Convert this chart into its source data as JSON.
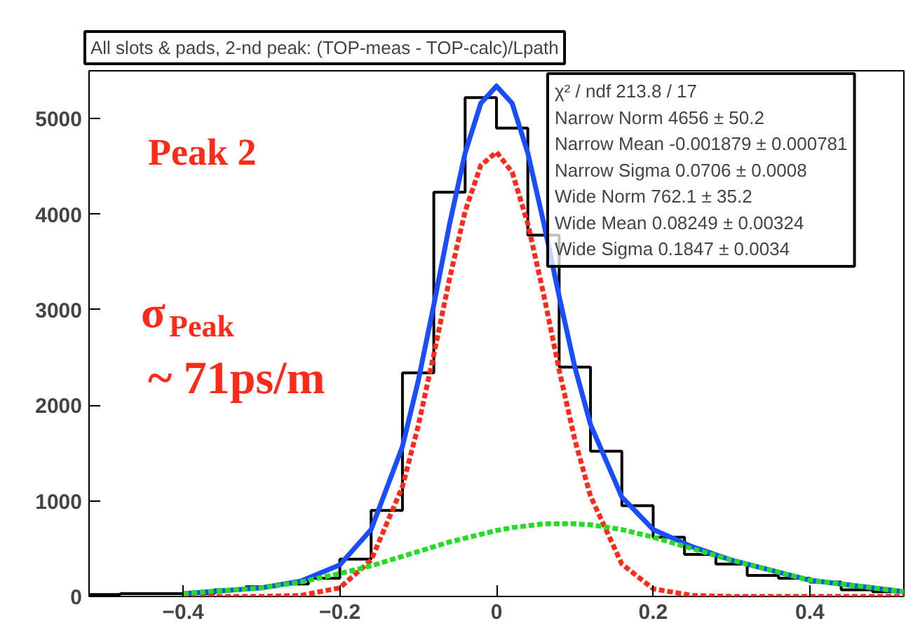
{
  "chart_data": {
    "type": "histogram",
    "title": "All slots & pads, 2-nd peak: (TOP-meas - TOP-calc)/Lpath",
    "bins": [
      -0.52,
      -0.48,
      -0.44,
      -0.4,
      -0.36,
      -0.32,
      -0.28,
      -0.24,
      -0.2,
      -0.16,
      -0.12,
      -0.08,
      -0.04,
      0,
      0.04,
      0.08,
      0.12,
      0.16,
      0.2,
      0.24,
      0.28,
      0.32,
      0.36,
      0.4,
      0.44,
      0.48,
      0.52
    ],
    "values": [
      20,
      30,
      30,
      30,
      70,
      100,
      130,
      190,
      390,
      900,
      2340,
      4230,
      5220,
      4900,
      3780,
      2400,
      1520,
      950,
      620,
      440,
      340,
      220,
      190,
      150,
      70,
      50
    ],
    "color": "#000000",
    "series": [
      {
        "type": "line",
        "color": "#ff2a1a",
        "line_style": "dotted",
        "x": [
          -0.4,
          -0.3,
          -0.25,
          -0.2,
          -0.16,
          -0.12,
          -0.1,
          -0.08,
          -0.06,
          -0.04,
          -0.02,
          0,
          0.02,
          0.04,
          0.06,
          0.08,
          0.1,
          0.12,
          0.16,
          0.2,
          0.25,
          0.3,
          0.4,
          0.52
        ],
        "values": [
          0,
          0,
          10,
          90,
          380,
          1150,
          1780,
          2530,
          3320,
          4030,
          4510,
          4650,
          4440,
          3900,
          3170,
          2370,
          1640,
          1050,
          340,
          80,
          10,
          0,
          0,
          0
        ]
      },
      {
        "type": "line",
        "color": "#22dd22",
        "line_style": "dotted",
        "x": [
          -0.4,
          -0.3,
          -0.25,
          -0.2,
          -0.16,
          -0.12,
          -0.1,
          -0.08,
          -0.06,
          -0.04,
          -0.02,
          0,
          0.02,
          0.04,
          0.06,
          0.08,
          0.1,
          0.12,
          0.16,
          0.2,
          0.25,
          0.3,
          0.4,
          0.52
        ],
        "values": [
          30,
          90,
          150,
          240,
          320,
          420,
          470,
          520,
          570,
          610,
          650,
          690,
          720,
          740,
          760,
          760,
          760,
          750,
          700,
          620,
          500,
          380,
          170,
          50
        ]
      },
      {
        "type": "line",
        "color": "#1a4dff",
        "line_style": "solid",
        "x": [
          -0.4,
          -0.3,
          -0.25,
          -0.2,
          -0.16,
          -0.12,
          -0.1,
          -0.08,
          -0.06,
          -0.04,
          -0.02,
          0,
          0.02,
          0.04,
          0.06,
          0.08,
          0.1,
          0.12,
          0.16,
          0.2,
          0.25,
          0.3,
          0.4,
          0.52
        ],
        "values": [
          30,
          90,
          160,
          330,
          700,
          1570,
          2250,
          3050,
          3890,
          4640,
          5160,
          5340,
          5160,
          4640,
          3920,
          3140,
          2400,
          1800,
          1040,
          700,
          520,
          380,
          170,
          50
        ]
      }
    ],
    "xlim": [
      -0.52,
      0.52
    ],
    "ylim": [
      0,
      5500
    ],
    "xticks": [
      -0.4,
      -0.2,
      {
        "value": 0,
        "label": "0"
      },
      0.2,
      0.4
    ],
    "yticks": [
      0,
      1000,
      2000,
      3000,
      4000,
      5000
    ],
    "grid": false,
    "annotations": [
      "Peak 2",
      "σ$_{Peak}$",
      "~ 71ps/m",
      "χ² / ndf 213.8 / 17",
      "Narrow Norm 4656 ± 50.2",
      "Narrow Mean -0.001879 ± 0.000781",
      "Narrow Sigma 0.0706 ± 0.0008",
      "Wide Norm 762.1 ± 35.2",
      "Wide Mean 0.08249 ± 0.00324",
      "Wide Sigma 0.1847 ± 0.0034"
    ]
  }
}
